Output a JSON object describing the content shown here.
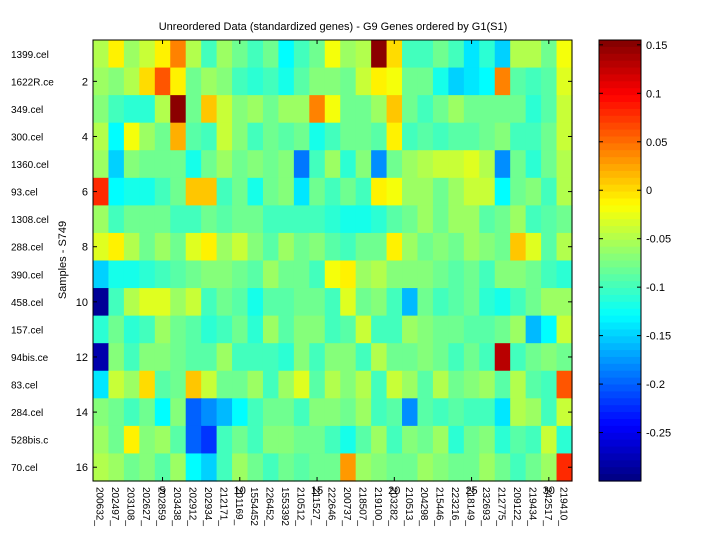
{
  "chart_data": {
    "type": "heatmap",
    "title": "Unreordered Data (standardized genes) - G9 Genes ordered by G1(S1)",
    "ylabel": "Samples - S749",
    "xlabel": "",
    "row_labels": [
      "1399.cel",
      "1622R.ce",
      "349.cel",
      "300.cel",
      "1360.cel",
      "93.cel",
      "1308.cel",
      "288.cel",
      "390.cel",
      "458.cel",
      "157.cel",
      "94bis.ce",
      "83.cel",
      "284.cel",
      "528bis.c",
      "70.cel"
    ],
    "row_tick_numbers": [
      "2",
      "4",
      "6",
      "8",
      "10",
      "12",
      "14",
      "16"
    ],
    "column_labels": [
      "200632_",
      "202497_",
      "203108_",
      "202627_",
      "202859_",
      "203438_",
      "202912_",
      "202934_",
      "212171_",
      "201169_",
      "1554452",
      "226452_",
      "1553392",
      "210512_",
      "211527_",
      "222646_",
      "200737_",
      "218507_",
      "219100_",
      "203282_",
      "210513_",
      "204298_",
      "215446_",
      "223216_",
      "218149_",
      "232693_",
      "212775_",
      "209122_",
      "219434_",
      "242517_",
      "219410_"
    ],
    "column_tick_numbers": [
      "5",
      "10",
      "15",
      "20",
      "25",
      "30"
    ],
    "colorbar": {
      "ticks": [
        "0.15",
        "0.1",
        "0.05",
        "0",
        "-0.05",
        "-0.1",
        "-0.15",
        "-0.2",
        "-0.25"
      ],
      "range": [
        -0.3,
        0.155
      ],
      "colormap": "jet"
    },
    "colors": {
      "frame": "#000000",
      "background": "#ffffff"
    },
    "values": [
      [
        -0.05,
        -0.01,
        -0.06,
        -0.04,
        -0.01,
        0.04,
        -0.05,
        -0.1,
        -0.06,
        -0.08,
        -0.1,
        -0.08,
        -0.13,
        -0.1,
        -0.08,
        -0.02,
        -0.06,
        -0.05,
        0.15,
        0.0,
        -0.1,
        -0.1,
        -0.08,
        -0.1,
        -0.14,
        -0.11,
        -0.15,
        -0.05,
        -0.05,
        -0.08,
        -0.02
      ],
      [
        -0.06,
        -0.07,
        -0.05,
        0.0,
        0.06,
        -0.01,
        -0.08,
        -0.06,
        -0.07,
        -0.1,
        -0.11,
        -0.1,
        -0.12,
        -0.09,
        -0.07,
        -0.07,
        -0.08,
        -0.04,
        -0.01,
        -0.02,
        -0.08,
        -0.08,
        -0.12,
        -0.15,
        -0.14,
        -0.13,
        0.04,
        -0.09,
        -0.1,
        -0.09,
        -0.03
      ],
      [
        -0.07,
        -0.1,
        -0.11,
        -0.11,
        -0.05,
        0.15,
        -0.08,
        0.01,
        -0.04,
        -0.07,
        -0.06,
        -0.08,
        -0.06,
        -0.06,
        0.04,
        -0.02,
        -0.08,
        -0.08,
        -0.06,
        0.01,
        -0.08,
        -0.1,
        -0.08,
        -0.06,
        -0.08,
        -0.08,
        -0.08,
        -0.08,
        -0.11,
        -0.09,
        -0.04
      ],
      [
        -0.05,
        -0.13,
        -0.02,
        -0.06,
        -0.08,
        0.02,
        -0.09,
        -0.1,
        -0.04,
        -0.07,
        -0.1,
        -0.08,
        -0.09,
        -0.08,
        -0.12,
        -0.1,
        -0.08,
        -0.08,
        -0.09,
        -0.01,
        -0.1,
        -0.09,
        -0.1,
        -0.09,
        -0.09,
        -0.08,
        -0.07,
        -0.1,
        -0.1,
        -0.08,
        -0.04
      ],
      [
        -0.06,
        -0.15,
        -0.07,
        -0.08,
        -0.08,
        -0.08,
        -0.12,
        -0.08,
        -0.06,
        -0.08,
        -0.07,
        -0.08,
        -0.07,
        -0.19,
        -0.1,
        -0.06,
        -0.11,
        -0.07,
        -0.18,
        -0.08,
        -0.06,
        -0.05,
        -0.04,
        -0.04,
        -0.03,
        -0.05,
        -0.18,
        -0.08,
        -0.11,
        -0.08,
        -0.05
      ],
      [
        0.08,
        -0.13,
        -0.12,
        -0.12,
        -0.1,
        -0.08,
        0.01,
        0.01,
        -0.1,
        -0.08,
        -0.12,
        -0.08,
        -0.07,
        -0.14,
        -0.08,
        -0.1,
        -0.08,
        -0.1,
        -0.01,
        -0.02,
        -0.06,
        -0.06,
        -0.08,
        -0.06,
        -0.04,
        -0.04,
        -0.13,
        -0.08,
        -0.07,
        -0.1,
        -0.05
      ],
      [
        -0.06,
        -0.1,
        -0.08,
        -0.08,
        -0.08,
        -0.1,
        -0.1,
        -0.08,
        -0.09,
        -0.08,
        -0.08,
        -0.1,
        -0.1,
        -0.1,
        -0.1,
        -0.11,
        -0.12,
        -0.12,
        -0.11,
        -0.09,
        -0.08,
        -0.06,
        -0.08,
        -0.06,
        -0.06,
        -0.09,
        -0.08,
        -0.06,
        -0.1,
        -0.09,
        -0.08
      ],
      [
        -0.03,
        -0.01,
        -0.05,
        -0.08,
        -0.06,
        -0.08,
        -0.03,
        -0.01,
        -0.06,
        -0.04,
        -0.07,
        -0.09,
        -0.06,
        -0.08,
        -0.07,
        -0.09,
        -0.1,
        -0.08,
        -0.08,
        -0.01,
        -0.06,
        -0.08,
        -0.07,
        -0.08,
        -0.06,
        -0.07,
        -0.08,
        0.01,
        -0.03,
        -0.09,
        -0.05
      ],
      [
        -0.15,
        -0.12,
        -0.12,
        -0.11,
        -0.1,
        -0.09,
        -0.08,
        -0.07,
        -0.07,
        -0.08,
        -0.09,
        -0.06,
        -0.08,
        -0.08,
        -0.1,
        -0.02,
        -0.01,
        -0.06,
        -0.05,
        -0.07,
        -0.07,
        -0.07,
        -0.08,
        -0.09,
        -0.08,
        -0.1,
        -0.07,
        -0.07,
        -0.08,
        -0.1,
        -0.11
      ],
      [
        -0.29,
        -0.1,
        -0.05,
        -0.03,
        -0.03,
        -0.06,
        -0.04,
        -0.1,
        -0.08,
        -0.09,
        -0.12,
        -0.09,
        -0.09,
        -0.08,
        -0.08,
        -0.1,
        -0.03,
        -0.08,
        -0.07,
        -0.1,
        -0.16,
        -0.08,
        -0.1,
        -0.09,
        -0.08,
        -0.11,
        -0.12,
        -0.1,
        -0.08,
        -0.06,
        -0.06
      ],
      [
        -0.11,
        -0.08,
        -0.11,
        -0.1,
        -0.06,
        -0.08,
        -0.09,
        -0.11,
        -0.1,
        -0.08,
        -0.11,
        -0.06,
        -0.09,
        -0.07,
        -0.07,
        -0.1,
        -0.09,
        -0.04,
        -0.1,
        -0.1,
        -0.06,
        -0.07,
        -0.08,
        -0.08,
        -0.09,
        -0.09,
        -0.08,
        -0.06,
        -0.16,
        -0.13,
        -0.04
      ],
      [
        -0.28,
        -0.07,
        -0.1,
        -0.07,
        -0.07,
        -0.08,
        -0.09,
        -0.09,
        -0.06,
        -0.1,
        -0.1,
        -0.1,
        -0.11,
        -0.07,
        -0.1,
        -0.07,
        -0.07,
        -0.1,
        -0.05,
        -0.08,
        -0.08,
        -0.07,
        -0.08,
        -0.1,
        -0.08,
        -0.1,
        0.13,
        -0.1,
        -0.08,
        -0.07,
        -0.08
      ],
      [
        -0.14,
        -0.04,
        -0.06,
        0.0,
        -0.09,
        -0.08,
        0.01,
        -0.04,
        -0.08,
        -0.08,
        -0.06,
        -0.1,
        -0.06,
        -0.03,
        -0.09,
        -0.05,
        -0.07,
        -0.05,
        -0.1,
        -0.04,
        -0.06,
        -0.09,
        -0.05,
        -0.08,
        -0.07,
        -0.06,
        -0.09,
        -0.05,
        -0.09,
        -0.1,
        0.06
      ],
      [
        -0.07,
        -0.08,
        -0.1,
        -0.08,
        -0.13,
        -0.07,
        -0.2,
        -0.18,
        -0.16,
        -0.13,
        -0.1,
        -0.08,
        -0.08,
        -0.1,
        -0.07,
        -0.07,
        -0.08,
        -0.06,
        -0.1,
        -0.09,
        -0.18,
        -0.09,
        -0.1,
        -0.09,
        -0.1,
        -0.1,
        -0.14,
        -0.05,
        -0.06,
        -0.1,
        -0.04
      ],
      [
        -0.06,
        -0.08,
        -0.01,
        -0.07,
        -0.06,
        -0.09,
        -0.2,
        -0.22,
        -0.1,
        -0.08,
        -0.1,
        -0.07,
        -0.07,
        -0.08,
        -0.08,
        -0.1,
        -0.12,
        -0.09,
        -0.06,
        -0.1,
        -0.07,
        -0.08,
        -0.06,
        -0.11,
        -0.08,
        -0.07,
        -0.11,
        -0.09,
        -0.1,
        -0.04,
        -0.11
      ],
      [
        -0.05,
        -0.06,
        -0.08,
        -0.07,
        -0.09,
        -0.06,
        -0.13,
        -0.15,
        -0.1,
        -0.06,
        -0.08,
        -0.1,
        -0.08,
        -0.09,
        -0.08,
        -0.08,
        0.03,
        -0.06,
        -0.07,
        -0.08,
        -0.08,
        -0.06,
        -0.07,
        -0.08,
        -0.08,
        -0.06,
        -0.08,
        -0.1,
        -0.08,
        -0.06,
        0.08
      ]
    ]
  }
}
